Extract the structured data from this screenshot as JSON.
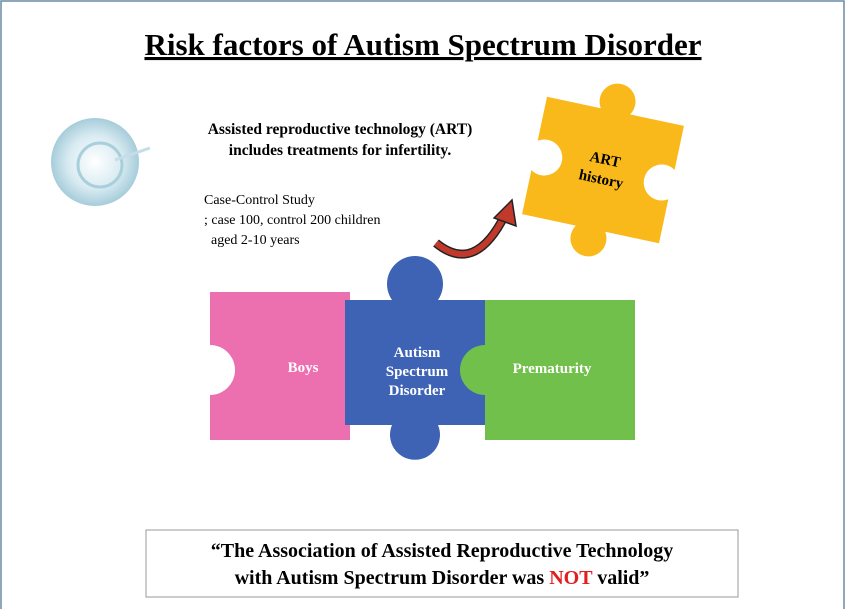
{
  "title": "Risk factors of Autism Spectrum Disorder",
  "art_description": {
    "lines": [
      "Assisted reproductive technology (ART)",
      "includes treatments for infertility."
    ]
  },
  "study": {
    "lines": [
      "Case-Control Study",
      "; case 100, control 200 children",
      "  aged 2-10 years"
    ]
  },
  "puzzle": {
    "art_history": [
      "ART",
      "history"
    ],
    "boys": "Boys",
    "asd": [
      "Autism",
      "Spectrum",
      "Disorder"
    ],
    "prematurity": "Prematurity"
  },
  "conclusion": {
    "line1": "“The Association of Assisted Reproductive Technology",
    "line2_before": "with Autism Spectrum Disorder was ",
    "emphasis": "NOT",
    "line2_after": " valid”"
  }
}
